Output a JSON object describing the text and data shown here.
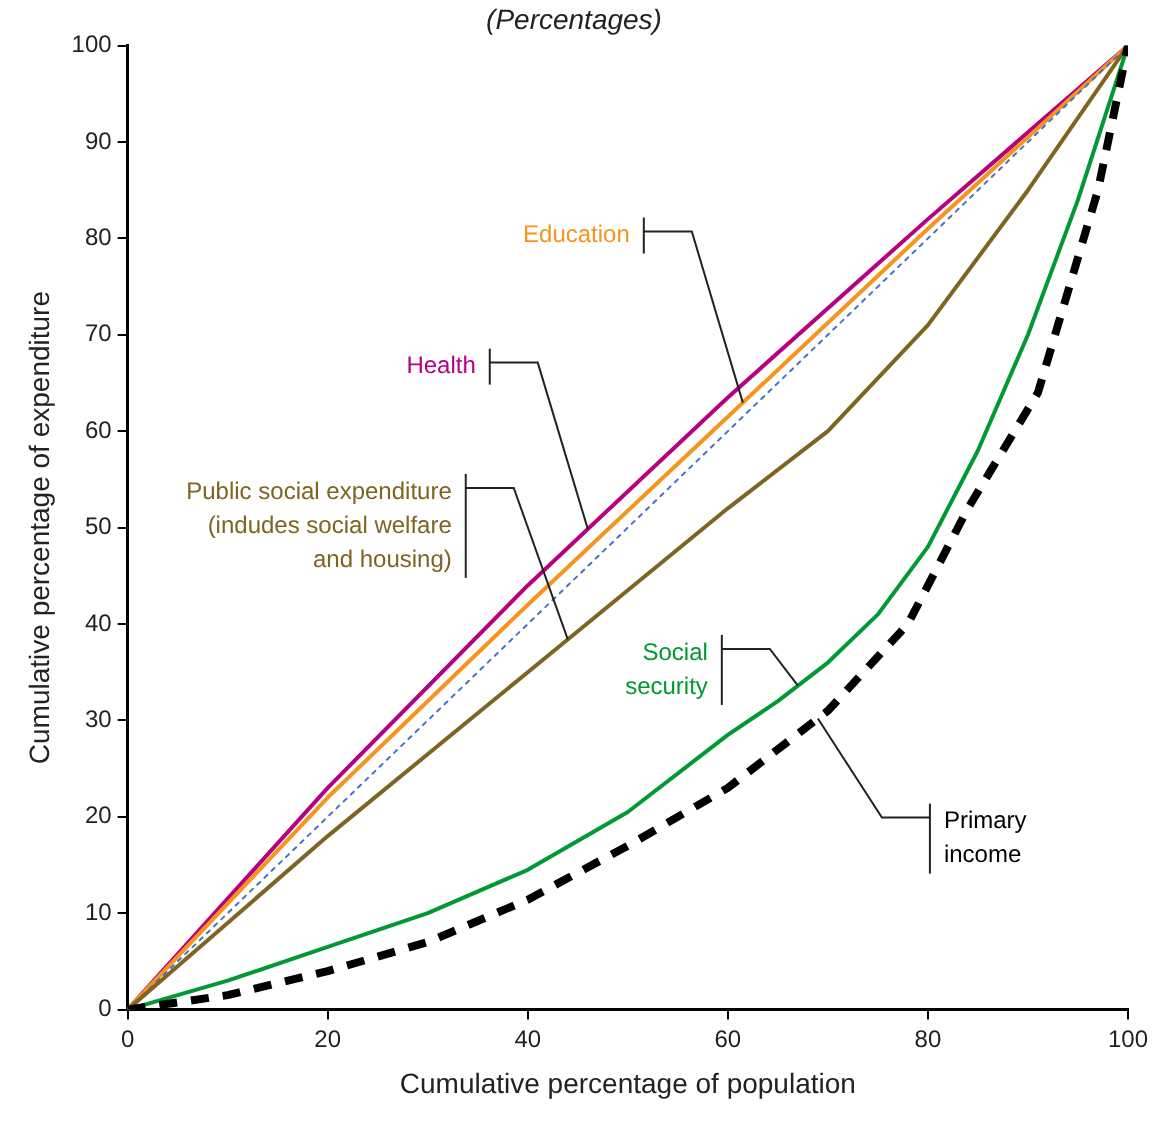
{
  "chart_data": {
    "type": "line",
    "title": "(Percentages)",
    "xlabel": "Cumulative percentage of population",
    "ylabel": "Cumulative percentage of expenditure",
    "xlim": [
      0,
      100
    ],
    "xticks": [
      0,
      20,
      40,
      60,
      80,
      100
    ],
    "ylim": [
      0,
      100
    ],
    "yticks": [
      0,
      10,
      20,
      30,
      40,
      50,
      60,
      70,
      80,
      90,
      100
    ],
    "grid": false,
    "legend": false,
    "marker": "none",
    "series": [
      {
        "name": "Health",
        "color": "#b5007f",
        "line_style": "solid",
        "x": [
          0,
          20,
          40,
          60,
          80,
          100
        ],
        "values": [
          0,
          23,
          44,
          63.5,
          82,
          100
        ]
      },
      {
        "name": "Education",
        "color": "#f7941d",
        "line_style": "solid",
        "x": [
          0,
          20,
          40,
          60,
          80,
          100
        ],
        "values": [
          0,
          22,
          42,
          61.5,
          81,
          100
        ]
      },
      {
        "color": "#4472c4",
        "line_style": "dotted",
        "x": [
          0,
          100
        ],
        "values": [
          0,
          100
        ]
      },
      {
        "name": "Public social expenditure (indudes social welfare and housing)",
        "color": "#7f6320",
        "line_style": "solid",
        "x": [
          0,
          20,
          40,
          60,
          70,
          80,
          90,
          100
        ],
        "values": [
          0,
          18,
          35,
          52,
          60,
          71,
          85,
          100
        ]
      },
      {
        "name": "Social security",
        "color": "#009933",
        "line_style": "solid",
        "x": [
          0,
          10,
          20,
          30,
          40,
          50,
          60,
          65,
          70,
          75,
          80,
          85,
          90,
          95,
          100
        ],
        "values": [
          0,
          3,
          6.5,
          10,
          14.5,
          20.5,
          28.5,
          32,
          36,
          41,
          48,
          58,
          70,
          84,
          100
        ]
      },
      {
        "name": "Primary income",
        "color": "#000000",
        "line_style": "dashed",
        "x": [
          0,
          10,
          20,
          30,
          40,
          50,
          60,
          70,
          78,
          84,
          91,
          97,
          100
        ],
        "values": [
          0,
          1.5,
          4,
          7,
          11.4,
          17,
          23,
          31,
          40,
          52,
          64,
          85,
          100
        ]
      }
    ]
  }
}
